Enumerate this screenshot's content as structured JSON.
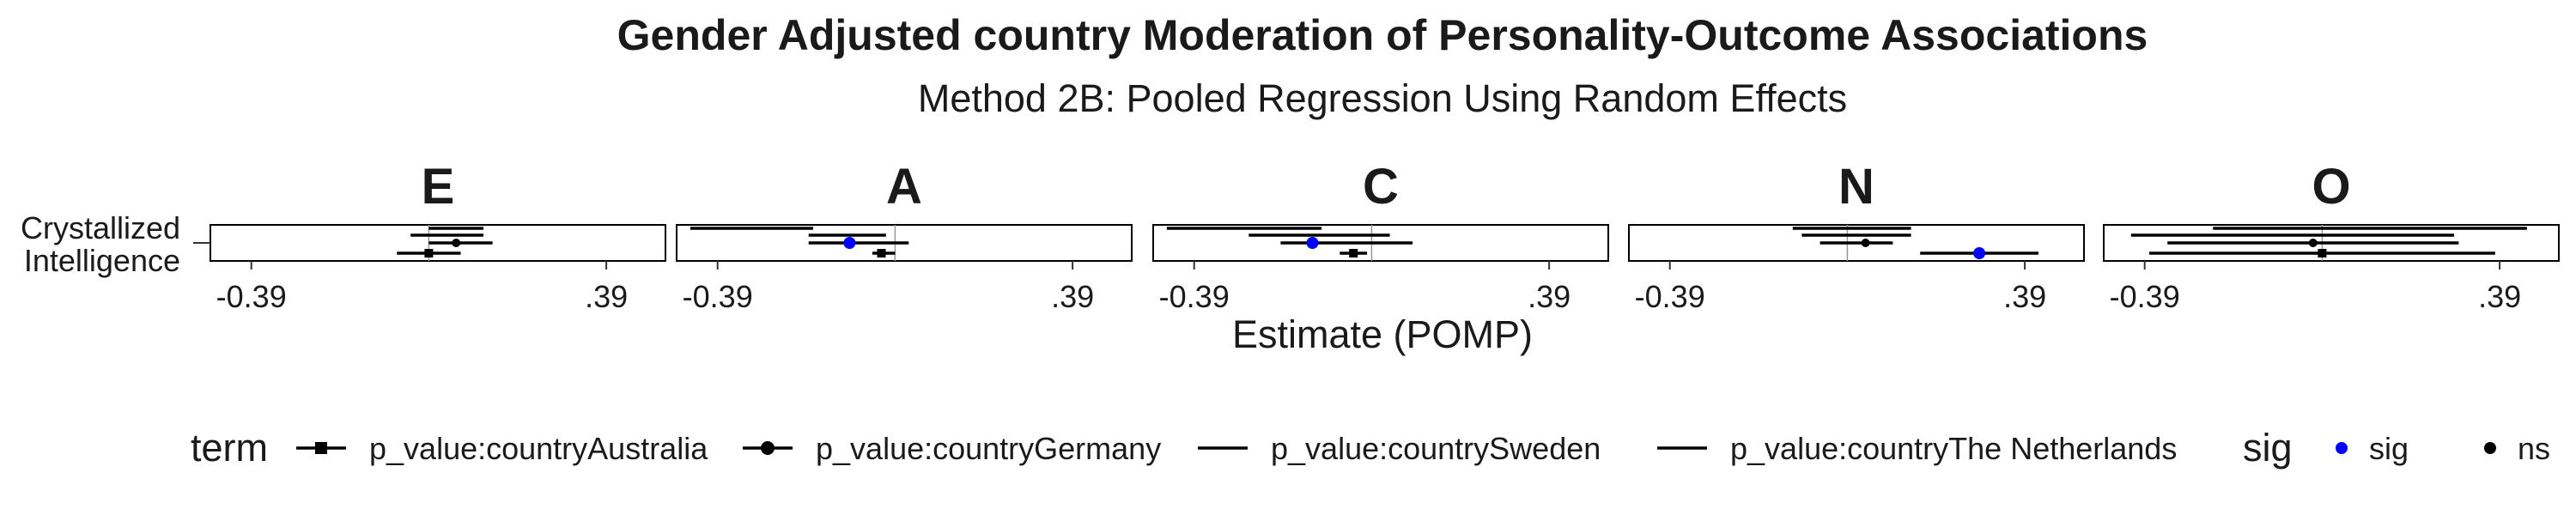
{
  "chart_data": {
    "type": "forest",
    "title": "Gender Adjusted country Moderation of Personality-Outcome Associations",
    "subtitle": "Method 2B: Pooled Regression Using Random Effects",
    "xlabel": "Estimate (POMP)",
    "y_categories": [
      "Crystallized\nIntelligence"
    ],
    "x_ticks": [
      -0.39,
      0.39
    ],
    "x_tick_labels": [
      "-0.39",
      ".39"
    ],
    "xlim": [
      -0.48,
      0.52
    ],
    "facets": [
      {
        "label": "E",
        "rows": [
          {
            "term": "p_value:countryAustralia",
            "estimate": 0.0,
            "low": -0.07,
            "high": 0.07,
            "sig": "ns",
            "shape": "square"
          },
          {
            "term": "p_value:countryGermany",
            "estimate": 0.06,
            "low": 0.0,
            "high": 0.14,
            "sig": "ns",
            "shape": "circle"
          },
          {
            "term": "p_value:countrySweden",
            "estimate": null,
            "low": -0.04,
            "high": 0.12,
            "sig": "ns",
            "shape": "none"
          },
          {
            "term": "p_value:countryThe Netherlands",
            "estimate": null,
            "low": 0.0,
            "high": 0.12,
            "sig": "ns",
            "shape": "none"
          }
        ]
      },
      {
        "label": "A",
        "rows": [
          {
            "term": "p_value:countryAustralia",
            "estimate": -0.03,
            "low": -0.05,
            "high": 0.0,
            "sig": "ns",
            "shape": "square"
          },
          {
            "term": "p_value:countryGermany",
            "estimate": -0.1,
            "low": -0.19,
            "high": 0.03,
            "sig": "sig",
            "shape": "circle"
          },
          {
            "term": "p_value:countrySweden",
            "estimate": null,
            "low": -0.19,
            "high": -0.02,
            "sig": "ns",
            "shape": "none"
          },
          {
            "term": "p_value:countryThe Netherlands",
            "estimate": null,
            "low": -0.45,
            "high": -0.18,
            "sig": "ns",
            "shape": "none"
          }
        ]
      },
      {
        "label": "C",
        "rows": [
          {
            "term": "p_value:countryAustralia",
            "estimate": -0.04,
            "low": -0.07,
            "high": -0.01,
            "sig": "ns",
            "shape": "square"
          },
          {
            "term": "p_value:countryGermany",
            "estimate": -0.13,
            "low": -0.2,
            "high": 0.09,
            "sig": "sig",
            "shape": "circle"
          },
          {
            "term": "p_value:countrySweden",
            "estimate": null,
            "low": -0.27,
            "high": 0.04,
            "sig": "ns",
            "shape": "none"
          },
          {
            "term": "p_value:countryThe Netherlands",
            "estimate": null,
            "low": -0.45,
            "high": -0.11,
            "sig": "ns",
            "shape": "none"
          }
        ]
      },
      {
        "label": "N",
        "rows": [
          {
            "term": "p_value:countryAustralia",
            "estimate": 0.29,
            "low": 0.16,
            "high": 0.42,
            "sig": "sig",
            "shape": "square"
          },
          {
            "term": "p_value:countryGermany",
            "estimate": 0.04,
            "low": -0.06,
            "high": 0.1,
            "sig": "ns",
            "shape": "circle"
          },
          {
            "term": "p_value:countrySweden",
            "estimate": null,
            "low": -0.1,
            "high": 0.14,
            "sig": "ns",
            "shape": "none"
          },
          {
            "term": "p_value:countryThe Netherlands",
            "estimate": null,
            "low": -0.12,
            "high": 0.14,
            "sig": "ns",
            "shape": "none"
          }
        ]
      },
      {
        "label": "O",
        "rows": [
          {
            "term": "p_value:countryAustralia",
            "estimate": 0.0,
            "low": -0.38,
            "high": 0.38,
            "sig": "ns",
            "shape": "square"
          },
          {
            "term": "p_value:countryGermany",
            "estimate": -0.02,
            "low": -0.34,
            "high": 0.3,
            "sig": "ns",
            "shape": "circle"
          },
          {
            "term": "p_value:countrySweden",
            "estimate": null,
            "low": -0.42,
            "high": 0.29,
            "sig": "ns",
            "shape": "none"
          },
          {
            "term": "p_value:countryThe Netherlands",
            "estimate": null,
            "low": -0.24,
            "high": 0.45,
            "sig": "ns",
            "shape": "none"
          }
        ]
      }
    ],
    "legend_term": {
      "title": "term",
      "entries": [
        {
          "label": "p_value:countryAustralia",
          "shape": "square"
        },
        {
          "label": "p_value:countryGermany",
          "shape": "circle"
        },
        {
          "label": "p_value:countrySweden",
          "shape": "none"
        },
        {
          "label": "p_value:countryThe Netherlands",
          "shape": "none"
        }
      ]
    },
    "legend_sig": {
      "title": "sig",
      "entries": [
        {
          "label": "sig",
          "color": "#0000ff"
        },
        {
          "label": "ns",
          "color": "#000000"
        }
      ]
    },
    "legend_position": "bottom",
    "grid": false,
    "colors": {
      "sig": "#0000ff",
      "ns": "#000000",
      "line": "#000000",
      "zero_line": "#999999"
    }
  }
}
